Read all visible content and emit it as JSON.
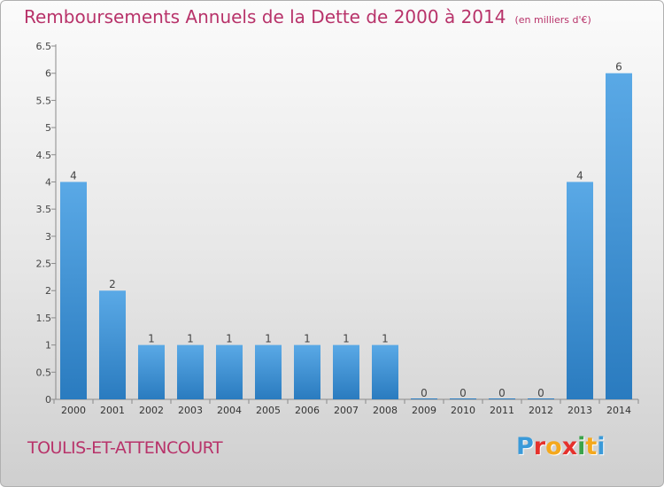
{
  "title": "Remboursements Annuels de la Dette de 2000 à 2014",
  "unit_note": "(en milliers d'€)",
  "place_name": "TOULIS-ET-ATTENCOURT",
  "logo_text": "Proxiti",
  "colors": {
    "title": "#b8336a",
    "bar_top": "#5aa9e6",
    "bar_bottom": "#2a7bbf",
    "logo": [
      "#3a9ad9",
      "#e5312c",
      "#f4a81d",
      "#e5312c",
      "#3aa34a",
      "#f4a81d",
      "#3a9ad9"
    ]
  },
  "chart_data": {
    "type": "bar",
    "categories": [
      "2000",
      "2001",
      "2002",
      "2003",
      "2004",
      "2005",
      "2006",
      "2007",
      "2008",
      "2009",
      "2010",
      "2011",
      "2012",
      "2013",
      "2014"
    ],
    "values": [
      4,
      2,
      1,
      1,
      1,
      1,
      1,
      1,
      1,
      0,
      0,
      0,
      0,
      4,
      6
    ],
    "data_labels": [
      "4",
      "2",
      "1",
      "1",
      "1",
      "1",
      "1",
      "1",
      "1",
      "0",
      "0",
      "0",
      "0",
      "4",
      "6"
    ],
    "yticks": [
      "0",
      "0.5",
      "1",
      "1.5",
      "2",
      "2.5",
      "3",
      "3.5",
      "4",
      "4.5",
      "5",
      "5.5",
      "6",
      "6.5"
    ],
    "ylim": [
      0,
      6.5
    ],
    "grid": false,
    "legend": "none"
  }
}
